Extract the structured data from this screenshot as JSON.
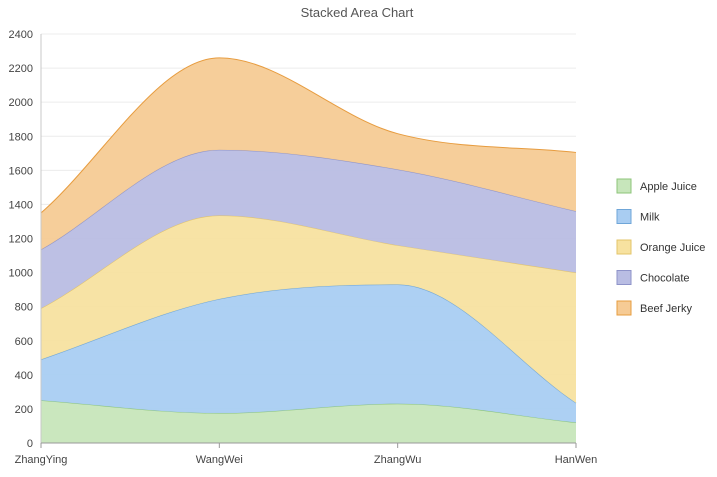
{
  "chart_data": {
    "type": "area",
    "stacked": true,
    "title": "Stacked Area Chart",
    "categories": [
      "ZhangYing",
      "WangWei",
      "ZhangWu",
      "HanWen"
    ],
    "ylim": [
      0,
      2400
    ],
    "yticks": [
      0,
      200,
      400,
      600,
      800,
      1000,
      1200,
      1400,
      1600,
      1800,
      2000,
      2200,
      2400
    ],
    "grid": true,
    "legend_position": "right",
    "series": [
      {
        "name": "Apple Juice",
        "values": [
          250,
          175,
          230,
          120
        ],
        "fill": "#c7e6bb",
        "stroke": "#8cc47a"
      },
      {
        "name": "Milk",
        "values": [
          240,
          670,
          700,
          115
        ],
        "fill": "#a9cdf2",
        "stroke": "#6fa6d8"
      },
      {
        "name": "Orange Juice",
        "values": [
          300,
          490,
          230,
          765
        ],
        "fill": "#f7e2a0",
        "stroke": "#e3c46a"
      },
      {
        "name": "Chocolate",
        "values": [
          345,
          385,
          445,
          360
        ],
        "fill": "#b9bde3",
        "stroke": "#8e93c9"
      },
      {
        "name": "Beef Jerky",
        "values": [
          215,
          540,
          210,
          345
        ],
        "fill": "#f6cb95",
        "stroke": "#e79c3f"
      }
    ]
  }
}
